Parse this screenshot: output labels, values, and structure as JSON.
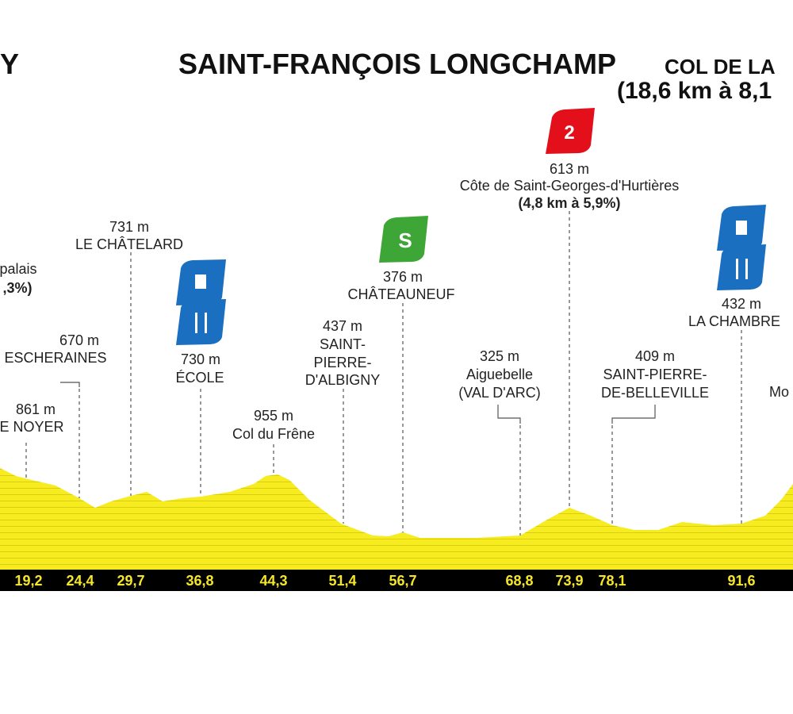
{
  "header": {
    "start_fragment": "Y",
    "finish": "SAINT-FRANÇOIS LONGCHAMP",
    "finish_climb_fragment": "COL DE LA",
    "finish_climb_detail_fragment": "(18,6 km à 8,1"
  },
  "badges": {
    "climb_category": "2",
    "sprint": "S"
  },
  "waypoints": [
    {
      "name_lines": [
        "palais"
      ],
      "detail": ",3%)"
    },
    {
      "altitude": "861 m",
      "name_lines": [
        "E NOYER"
      ]
    },
    {
      "altitude": "670 m",
      "name_lines": [
        "ESCHERAINES"
      ]
    },
    {
      "altitude": "731 m",
      "name_lines": [
        "LE CHÂTELARD"
      ]
    },
    {
      "altitude": "730 m",
      "name_lines": [
        "ÉCOLE"
      ]
    },
    {
      "altitude": "955 m",
      "name_lines": [
        "Col du Frêne"
      ]
    },
    {
      "altitude": "437 m",
      "name_lines": [
        "SAINT-",
        "PIERRE-",
        "D'ALBIGNY"
      ]
    },
    {
      "altitude": "376 m",
      "name_lines": [
        "CHÂTEAUNEUF"
      ]
    },
    {
      "altitude": "325 m",
      "name_lines": [
        "Aiguebelle",
        "(VAL D'ARC)"
      ]
    },
    {
      "altitude": "613 m",
      "name_lines": [
        "Côte de Saint-Georges-d'Hurtières"
      ],
      "detail": "(4,8 km à 5,9%)"
    },
    {
      "altitude": "409 m",
      "name_lines": [
        "SAINT-PIERRE-",
        "DE-BELLEVILLE"
      ]
    },
    {
      "altitude": "432 m",
      "name_lines": [
        "LA CHAMBRE"
      ]
    },
    {
      "name_lines": [
        "Mo"
      ]
    }
  ],
  "km_markers": [
    "19,2",
    "24,4",
    "29,7",
    "36,8",
    "44,3",
    "51,4",
    "56,7",
    "68,8",
    "73,9",
    "78,1",
    "91,6"
  ]
}
